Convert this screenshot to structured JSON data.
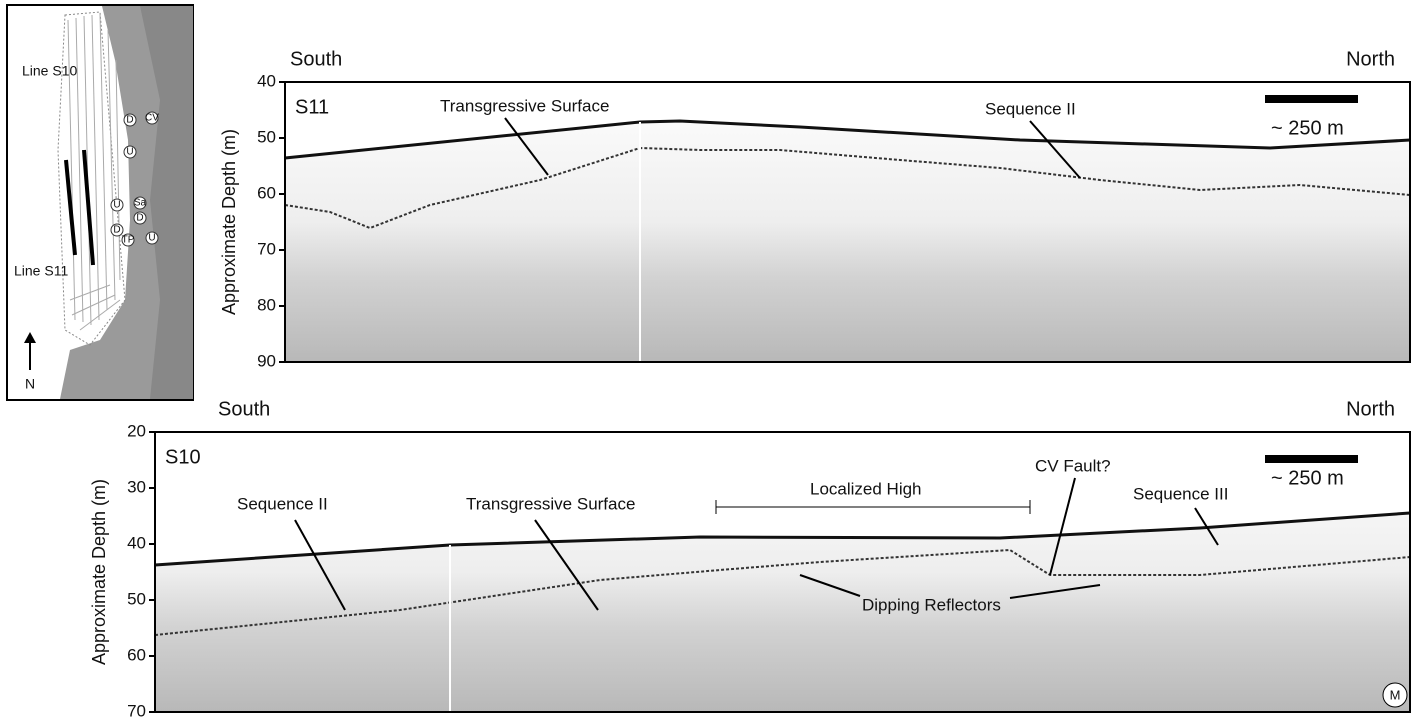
{
  "map": {
    "line_labels": [
      "Line S10",
      "Line S11"
    ],
    "north": "N",
    "fault_labels": [
      "D",
      "CV",
      "U",
      "U",
      "Sa",
      "D",
      "D",
      "TP",
      "U"
    ]
  },
  "panels": [
    {
      "left": "South",
      "right": "North",
      "y_label": "Approximate Depth (m)",
      "line": "S11",
      "ylim": [
        40,
        90
      ],
      "yticks": [
        40,
        50,
        60,
        70,
        80,
        90
      ],
      "scale_bar": "~ 250 m",
      "annotations": [
        "Transgressive Surface",
        "Sequence II"
      ]
    },
    {
      "left": "South",
      "right": "North",
      "y_label": "Approximate Depth (m)",
      "line": "S10",
      "ylim": [
        20,
        70
      ],
      "yticks": [
        20,
        30,
        40,
        50,
        60,
        70
      ],
      "scale_bar": "~ 250 m",
      "annotations": [
        "Sequence II",
        "Transgressive Surface",
        "Localized High",
        "CV Fault?",
        "Sequence III",
        "Dipping Reflectors",
        "M"
      ]
    }
  ]
}
